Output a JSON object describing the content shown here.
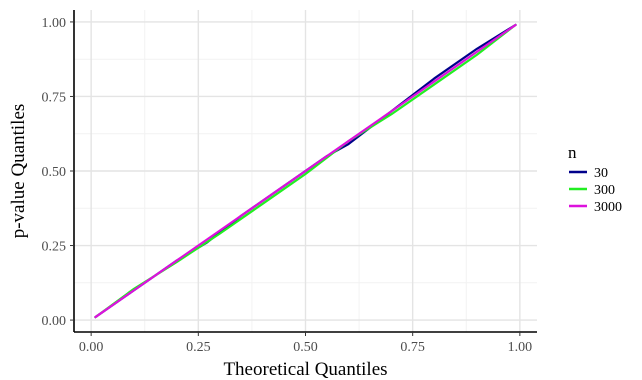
{
  "chart_data": {
    "type": "line",
    "xlabel": "Theoretical Quantiles",
    "ylabel": "p-value Quantiles",
    "xlim": [
      -0.04,
      1.04
    ],
    "ylim": [
      -0.04,
      1.04
    ],
    "x_ticks": [
      0.0,
      0.25,
      0.5,
      0.75,
      1.0
    ],
    "y_ticks": [
      0.0,
      0.25,
      0.5,
      0.75,
      1.0
    ],
    "x_tick_labels": [
      "0.00",
      "0.25",
      "0.50",
      "0.75",
      "1.00"
    ],
    "y_tick_labels": [
      "0.00",
      "0.25",
      "0.50",
      "0.75",
      "1.00"
    ],
    "grid": true,
    "legend": {
      "title": "n",
      "position": "right"
    },
    "series": [
      {
        "name": "30",
        "color": "#00008B",
        "x": [
          0.01,
          0.1,
          0.2,
          0.27,
          0.35,
          0.45,
          0.55,
          0.6,
          0.7,
          0.8,
          0.9,
          0.99
        ],
        "y": [
          0.01,
          0.1,
          0.2,
          0.26,
          0.35,
          0.45,
          0.55,
          0.59,
          0.7,
          0.81,
          0.91,
          0.99
        ]
      },
      {
        "name": "300",
        "color": "#22EE22",
        "x": [
          0.01,
          0.1,
          0.2,
          0.3,
          0.4,
          0.5,
          0.6,
          0.7,
          0.8,
          0.9,
          0.99
        ],
        "y": [
          0.01,
          0.105,
          0.195,
          0.29,
          0.39,
          0.49,
          0.6,
          0.69,
          0.79,
          0.89,
          0.99
        ]
      },
      {
        "name": "3000",
        "color": "#DD11DD",
        "x": [
          0.01,
          0.1,
          0.2,
          0.3,
          0.4,
          0.5,
          0.6,
          0.7,
          0.8,
          0.9,
          0.99
        ],
        "y": [
          0.01,
          0.1,
          0.2,
          0.3,
          0.4,
          0.5,
          0.6,
          0.7,
          0.8,
          0.9,
          0.99
        ]
      }
    ]
  }
}
